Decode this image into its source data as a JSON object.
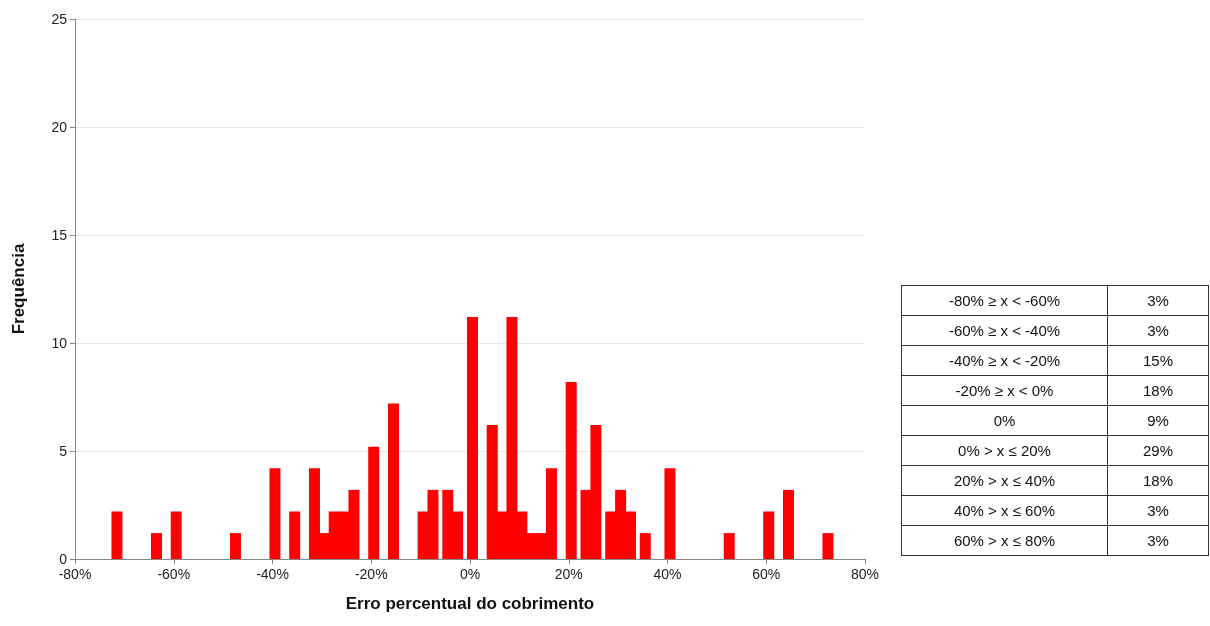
{
  "chart_data": [
    {
      "type": "bar",
      "xlabel": "Erro percentual do cobrimento",
      "ylabel": "Frequência",
      "x": [
        -71.5,
        -63.5,
        -59.5,
        -47.5,
        -39.5,
        -35.5,
        -31.5,
        -29.5,
        -27.5,
        -25.5,
        -23.5,
        -19.5,
        -15.5,
        -9.5,
        -7.5,
        -4.5,
        -2.5,
        0.5,
        4.5,
        6.5,
        8.5,
        10.5,
        12.5,
        14.5,
        16.5,
        20.5,
        23.5,
        25.5,
        28.5,
        30.5,
        32.5,
        35.5,
        40.5,
        52.5,
        60.5,
        64.5,
        72.5
      ],
      "values": [
        2.2,
        1.2,
        2.2,
        1.2,
        4.2,
        2.2,
        4.2,
        1.2,
        2.2,
        2.2,
        3.2,
        5.2,
        7.2,
        2.2,
        3.2,
        3.2,
        2.2,
        11.2,
        6.2,
        2.2,
        11.2,
        2.2,
        1.2,
        1.2,
        4.2,
        8.2,
        3.2,
        6.2,
        2.2,
        3.2,
        2.2,
        1.2,
        4.2,
        1.2,
        2.2,
        3.2,
        1.2
      ],
      "color": "#ff0000",
      "xlim": [
        -80,
        80
      ],
      "xticks": [
        {
          "value": -80,
          "label": "-80%"
        },
        {
          "value": -60,
          "label": "-60%"
        },
        {
          "value": -40,
          "label": "-40%"
        },
        {
          "value": -20,
          "label": "-20%"
        },
        {
          "value": 0,
          "label": "0%"
        },
        {
          "value": 20,
          "label": "20%"
        },
        {
          "value": 40,
          "label": "40%"
        },
        {
          "value": 60,
          "label": "60%"
        },
        {
          "value": 80,
          "label": "80%"
        }
      ],
      "ylim": [
        0,
        25
      ],
      "yticks": [
        0,
        5,
        10,
        15,
        20,
        25
      ],
      "grid": "y"
    },
    {
      "type": "other",
      "categories": [
        "-80% ≥ x < -60%",
        "-60% ≥ x < -40%",
        "-40% ≥ x < -20%",
        "-20% ≥ x < 0%",
        "0%",
        "0% > x ≤ 20%",
        "20% > x ≤ 40%",
        "40% > x ≤ 60%",
        "60% > x ≤ 80%"
      ],
      "value_labels": [
        "3%",
        "3%",
        "15%",
        "18%",
        "9%",
        "29%",
        "18%",
        "3%",
        "3%"
      ]
    }
  ]
}
